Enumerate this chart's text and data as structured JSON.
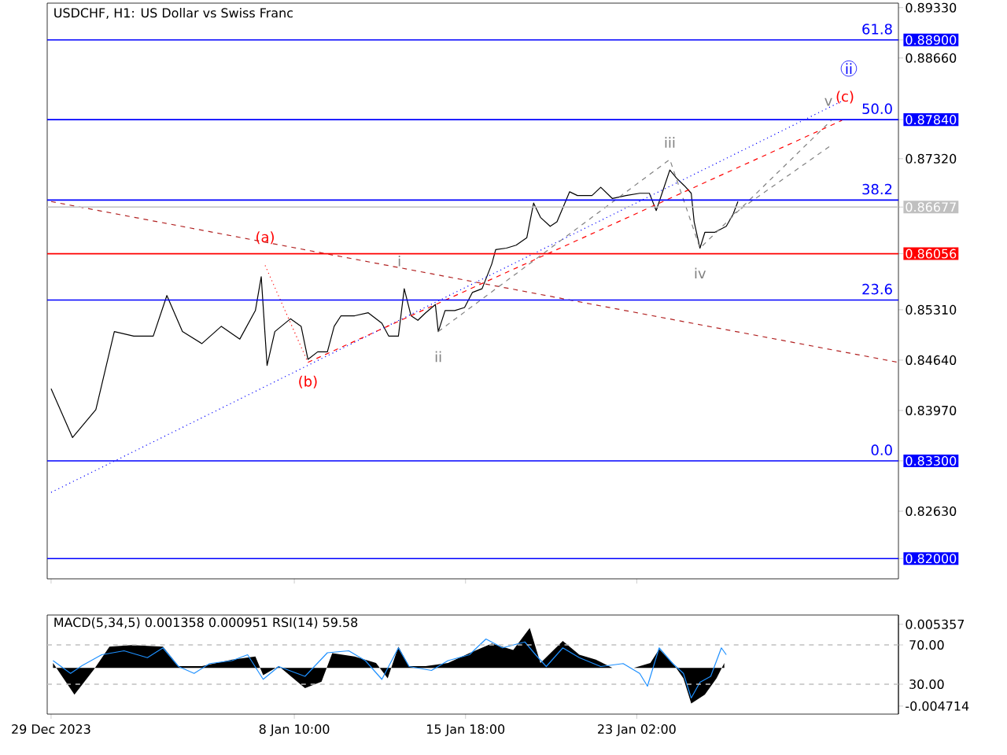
{
  "chart_data": [
    {
      "type": "line",
      "title": "USDCHF, H1:  US Dollar vs Swiss Franc",
      "xlim": [
        "2023-12-28T20:00",
        "2024-02-03T07:00"
      ],
      "ylim": [
        0.8173,
        0.8939
      ],
      "tick_labels": "y",
      "marker": "none",
      "xticks": [
        {
          "value": "2023-12-29T00:00",
          "label": null
        },
        {
          "value": "2024-01-08T10:00",
          "label": null
        },
        {
          "value": "2024-01-15T18:00",
          "label": null
        },
        {
          "value": "2024-01-23T02:00",
          "label": null
        }
      ],
      "yticks": [
        {
          "value": 0.8933,
          "label": "0.89330"
        },
        {
          "value": 0.889,
          "label": "0.88900"
        },
        {
          "value": 0.8866,
          "label": "0.88660"
        },
        {
          "value": 0.8784,
          "label": "0.87840"
        },
        {
          "value": 0.8732,
          "label": "0.87320"
        },
        {
          "value": 0.86677,
          "label": "0.86677"
        },
        {
          "value": 0.86056,
          "label": "0.86056"
        },
        {
          "value": 0.8531,
          "label": "0.85310"
        },
        {
          "value": 0.8464,
          "label": "0.84640"
        },
        {
          "value": 0.8397,
          "label": "0.83970"
        },
        {
          "value": 0.833,
          "label": "0.83300"
        },
        {
          "value": 0.8263,
          "label": "0.82630"
        },
        {
          "value": 0.82,
          "label": "0.82000"
        }
      ],
      "series": [
        {
          "color": "#000000",
          "line_style": "solid",
          "x": [
            "2023-12-29T00:00",
            "2023-12-29T22:00",
            "2023-12-30T22:00",
            "2023-12-31T17:00",
            "2024-01-01T13:00",
            "2024-01-02T09:00",
            "2024-01-02T23:00",
            "2024-01-03T15:00",
            "2024-01-04T11:00",
            "2024-01-05T07:00",
            "2024-01-06T02:00",
            "2024-01-06T18:00",
            "2024-01-07T00:00",
            "2024-01-07T06:00",
            "2024-01-07T14:00",
            "2024-01-08T06:00",
            "2024-01-08T17:00",
            "2024-01-09T00:00",
            "2024-01-09T10:00",
            "2024-01-09T20:00",
            "2024-01-10T03:00",
            "2024-01-10T10:00",
            "2024-01-11T00:00",
            "2024-01-11T14:00",
            "2024-01-12T04:00",
            "2024-01-12T11:00",
            "2024-01-12T21:00",
            "2024-01-13T03:00",
            "2024-01-13T10:00",
            "2024-01-13T17:00",
            "2024-01-14T01:00",
            "2024-01-14T11:00",
            "2024-01-14T14:00",
            "2024-01-14T21:00",
            "2024-01-15T07:00",
            "2024-01-15T17:00",
            "2024-01-16T01:00",
            "2024-01-16T11:00",
            "2024-01-16T21:00",
            "2024-01-17T01:00",
            "2024-01-17T12:00",
            "2024-01-17T22:00",
            "2024-01-18T09:00",
            "2024-01-18T16:00",
            "2024-01-18T23:00",
            "2024-01-19T09:00",
            "2024-01-19T16:00",
            "2024-01-20T05:00",
            "2024-01-20T13:00",
            "2024-01-21T04:00",
            "2024-01-21T13:00",
            "2024-01-22T01:00",
            "2024-01-22T15:00",
            "2024-01-23T05:00",
            "2024-01-23T15:00",
            "2024-01-23T22:00",
            "2024-01-24T05:00",
            "2024-01-24T12:00",
            "2024-01-24T19:00",
            "2024-01-25T03:00",
            "2024-01-25T10:00",
            "2024-01-25T13:00",
            "2024-01-25T19:00",
            "2024-01-26T00:00",
            "2024-01-26T10:00",
            "2024-01-26T22:00",
            "2024-01-27T05:00",
            "2024-01-27T10:00"
          ],
          "values": [
            0.8426,
            0.8361,
            0.8398,
            0.8502,
            0.8496,
            0.8496,
            0.855,
            0.8502,
            0.8486,
            0.8509,
            0.8492,
            0.853,
            0.8575,
            0.8457,
            0.8502,
            0.8519,
            0.8509,
            0.8465,
            0.8475,
            0.8475,
            0.8509,
            0.8523,
            0.8523,
            0.8527,
            0.8513,
            0.8496,
            0.8496,
            0.8559,
            0.8523,
            0.8517,
            0.8527,
            0.8538,
            0.8502,
            0.853,
            0.853,
            0.8534,
            0.8554,
            0.8559,
            0.8592,
            0.8611,
            0.8613,
            0.8617,
            0.8627,
            0.8673,
            0.8654,
            0.8642,
            0.8648,
            0.8688,
            0.8683,
            0.8683,
            0.8694,
            0.8679,
            0.8683,
            0.8686,
            0.8686,
            0.8663,
            0.869,
            0.8717,
            0.8706,
            0.8696,
            0.8686,
            0.8648,
            0.8613,
            0.8634,
            0.8634,
            0.8642,
            0.8658,
            0.8675
          ]
        },
        {
          "color": "#0000ff",
          "line_style": "dotted",
          "x": [
            "2023-12-29T00:00",
            "2024-01-31T20:00"
          ],
          "values": [
            0.8288,
            0.8808
          ]
        },
        {
          "color": "#ff0000",
          "line_style": "dashed",
          "x": [
            "2024-01-09T00:00",
            "2024-01-31T21:00"
          ],
          "values": [
            0.8461,
            0.8783
          ]
        },
        {
          "color": "#b22222",
          "line_style": "dashed",
          "x": [
            "2023-12-29T00:00",
            "2024-02-03T07:00"
          ],
          "values": [
            0.8675,
            0.8461
          ]
        },
        {
          "color": "#808080",
          "line_style": "dashed",
          "x": [
            "2024-01-14T14:00",
            "2024-01-24T12:00",
            "2024-01-25T19:00",
            "2024-01-31T10:00"
          ],
          "values": [
            0.8502,
            0.8731,
            0.8613,
            0.8783
          ]
        },
        {
          "color": "#808080",
          "line_style": "dashed",
          "x": [
            "2024-01-27T05:00",
            "2024-01-31T10:00"
          ],
          "values": [
            0.8658,
            0.875
          ]
        },
        {
          "color": "#ff0000",
          "line_style": "dotted",
          "x": [
            "2024-01-07T04:00",
            "2024-01-09T00:00"
          ],
          "values": [
            0.859,
            0.8461
          ]
        }
      ],
      "ref_lines": [
        {
          "axis": "y",
          "value": 0.889,
          "color": "#0000ff"
        },
        {
          "axis": "y",
          "value": 0.8784,
          "color": "#0000ff"
        },
        {
          "axis": "y",
          "value": 0.8677,
          "color": "#0000ff"
        },
        {
          "axis": "y",
          "value": 0.86677,
          "color": "#c0c0c0"
        },
        {
          "axis": "y",
          "value": 0.86056,
          "color": "#ff0000"
        },
        {
          "axis": "y",
          "value": 0.8544,
          "color": "#0000ff"
        },
        {
          "axis": "y",
          "value": 0.833,
          "color": "#0000ff"
        },
        {
          "axis": "y",
          "value": 0.82,
          "color": "#0000ff"
        }
      ],
      "annotations": [
        {
          "text": "(a)",
          "x": "2024-01-07T04:00",
          "y": 0.8627
        },
        {
          "text": "(b)",
          "x": "2024-01-09T00:00",
          "y": 0.8461
        },
        {
          "text": "i",
          "x": "2024-01-12T22:00",
          "y": 0.8596
        },
        {
          "text": "ii",
          "x": "2024-01-14T14:00",
          "y": 0.8502
        },
        {
          "text": "iii",
          "x": "2024-01-24T12:00",
          "y": 0.8731
        },
        {
          "text": "iv",
          "x": "2024-01-25T19:00",
          "y": 0.8613
        },
        {
          "text": "v",
          "x": "2024-01-31T07:00",
          "y": 0.8795
        },
        {
          "text": "(c)",
          "x": "2024-02-01T00:00",
          "y": 0.8814
        },
        {
          "text": "ii",
          "x": "2024-02-01T04:00",
          "y": 0.8852
        },
        {
          "text": "61.8",
          "x": "2024-02-03T07:00",
          "y": 0.889
        },
        {
          "text": "50.0",
          "x": "2024-02-03T07:00",
          "y": 0.8784
        },
        {
          "text": "38.2",
          "x": "2024-02-03T07:00",
          "y": 0.8677
        },
        {
          "text": "23.6",
          "x": "2024-02-03T07:00",
          "y": 0.8544
        },
        {
          "text": "0.0",
          "x": "2024-02-03T07:00",
          "y": 0.833
        }
      ]
    },
    {
      "type": "area",
      "title": "MACD(5,34,5) 0.001358 0.000951 RSI(14) 59.58",
      "xlim": [
        "2023-12-28T20:00",
        "2024-02-03T07:00"
      ],
      "ylim": [
        -0.0057,
        0.0065
      ],
      "y2lim": [
        -0.4,
        100.4
      ],
      "marker": "none",
      "xticks": [
        {
          "value": "2023-12-29T00:00",
          "label": "29 Dec 2023"
        },
        {
          "value": "2024-01-08T10:00",
          "label": "8 Jan 10:00"
        },
        {
          "value": "2024-01-15T18:00",
          "label": "15 Jan 18:00"
        },
        {
          "value": "2024-01-23T02:00",
          "label": "23 Jan 02:00"
        }
      ],
      "yticks": [
        {
          "value": 0.005357,
          "label": "0.005357"
        },
        {
          "value": -0.004714,
          "label": "-0.004714"
        }
      ],
      "y2ticks": [
        {
          "value": 70,
          "label": "70.00"
        },
        {
          "value": 30,
          "label": "30.00"
        }
      ],
      "series": [
        {
          "color": "#000000",
          "axis": "y",
          "x": [
            "2023-12-29T02:00",
            "2023-12-30T00:00",
            "2023-12-30T20:00",
            "2023-12-31T12:00",
            "2024-01-01T11:00",
            "2024-01-02T19:00",
            "2024-01-03T11:00",
            "2024-01-04T11:00",
            "2024-01-05T18:00",
            "2024-01-06T18:00",
            "2024-01-07T02:00",
            "2024-01-07T18:00",
            "2024-01-08T21:00",
            "2024-01-09T14:00",
            "2024-01-10T01:00",
            "2024-01-11T00:00",
            "2024-01-11T22:00",
            "2024-01-12T10:00",
            "2024-01-12T21:00",
            "2024-01-13T08:00",
            "2024-01-14T01:00",
            "2024-01-15T00:00",
            "2024-01-15T22:00",
            "2024-01-16T21:00",
            "2024-01-17T19:00",
            "2024-01-18T12:00",
            "2024-01-18T23:00",
            "2024-01-19T22:00",
            "2024-01-20T15:00",
            "2024-01-21T08:00",
            "2024-01-22T01:00",
            "2024-01-22T23:00",
            "2024-01-23T16:00",
            "2024-01-24T01:00",
            "2024-01-24T15:00",
            "2024-01-25T02:00",
            "2024-01-25T10:00",
            "2024-01-26T00:00",
            "2024-01-26T12:00",
            "2024-01-26T20:00"
          ],
          "values": [
            0.0006,
            -0.0033,
            -0.0002,
            0.0026,
            0.0028,
            0.0026,
            0.0002,
            0.0002,
            0.001,
            0.0014,
            -0.0009,
            0.0002,
            -0.0025,
            -0.0017,
            0.0018,
            0.0014,
            0.0006,
            -0.0013,
            0.0026,
            0.0002,
            0.0002,
            0.0006,
            0.0018,
            0.003,
            0.0022,
            0.0049,
            0.0006,
            0.0033,
            0.0016,
            0.001,
            0,
            0,
            0.0006,
            0.0023,
            0.0006,
            -0.0013,
            -0.0044,
            -0.0033,
            -0.0013,
            0.0006
          ]
        },
        {
          "type": "line",
          "color": "#1e90ff",
          "axis": "y2",
          "line_style": "solid",
          "x": [
            "2023-12-29T02:00",
            "2023-12-29T20:00",
            "2023-12-30T08:00",
            "2023-12-31T04:00",
            "2024-01-01T03:00",
            "2024-01-02T03:00",
            "2024-01-02T19:00",
            "2024-01-03T11:00",
            "2024-01-04T03:00",
            "2024-01-04T19:00",
            "2024-01-05T18:00",
            "2024-01-06T10:00",
            "2024-01-07T02:00",
            "2024-01-07T18:00",
            "2024-01-08T21:00",
            "2024-01-09T20:00",
            "2024-01-10T18:00",
            "2024-01-11T11:00",
            "2024-01-12T04:00",
            "2024-01-12T21:00",
            "2024-01-13T08:00",
            "2024-01-14T07:00",
            "2024-01-15T00:00",
            "2024-01-15T22:00",
            "2024-01-16T15:00",
            "2024-01-17T08:00",
            "2024-01-18T07:00",
            "2024-01-18T18:00",
            "2024-01-19T05:00",
            "2024-01-19T22:00",
            "2024-01-20T15:00",
            "2024-01-21T13:00",
            "2024-01-22T12:00",
            "2024-01-23T05:00",
            "2024-01-23T13:00",
            "2024-01-24T01:00",
            "2024-01-24T15:00",
            "2024-01-25T02:00",
            "2024-01-25T10:00",
            "2024-01-25T19:00",
            "2024-01-26T06:00",
            "2024-01-26T17:00",
            "2024-01-26T22:00"
          ],
          "values": [
            54,
            41,
            49,
            60,
            64,
            57,
            67,
            48,
            41,
            51,
            54,
            60,
            35,
            48,
            38,
            62,
            64,
            54,
            35,
            67,
            48,
            44,
            54,
            60,
            76,
            67,
            73,
            60,
            48,
            67,
            57,
            48,
            51,
            41,
            28,
            67,
            51,
            41,
            16,
            32,
            38,
            67,
            60
          ]
        }
      ],
      "ref_lines": [
        {
          "axis": "y2",
          "value": 70,
          "color": "#c0c0c0",
          "line_style": "dashed"
        },
        {
          "axis": "y2",
          "value": 30,
          "color": "#c0c0c0",
          "line_style": "dashed"
        }
      ]
    }
  ]
}
